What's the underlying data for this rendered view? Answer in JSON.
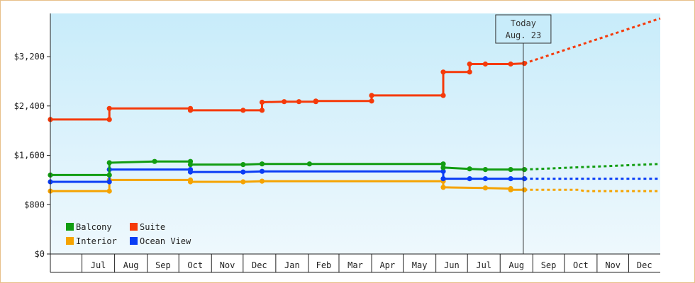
{
  "chart_data": {
    "type": "line",
    "title": "",
    "xlabel": "",
    "ylabel": "",
    "ylim": [
      0,
      3900
    ],
    "y_ticks": [
      0,
      800,
      1600,
      2400,
      3200
    ],
    "y_tick_labels": [
      "$0",
      "$800",
      "$1,600",
      "$2,400",
      "$3,200"
    ],
    "x_range": [
      "2015-06-01",
      "2016-12-31"
    ],
    "x_tick_labels": [
      {
        "label": "Jul",
        "date": "2015-07-01"
      },
      {
        "label": "Aug",
        "date": "2015-08-01"
      },
      {
        "label": "Sep",
        "date": "2015-09-01"
      },
      {
        "label": "Oct",
        "date": "2015-10-01"
      },
      {
        "label": "Nov",
        "date": "2015-11-01"
      },
      {
        "label": "Dec",
        "date": "2015-12-01"
      },
      {
        "label": "Jan",
        "date": "2016-01-01"
      },
      {
        "label": "Feb",
        "date": "2016-02-01"
      },
      {
        "label": "Mar",
        "date": "2016-03-01"
      },
      {
        "label": "Apr",
        "date": "2016-04-01"
      },
      {
        "label": "May",
        "date": "2016-05-01"
      },
      {
        "label": "Jun",
        "date": "2016-06-01"
      },
      {
        "label": "Jul",
        "date": "2016-07-01"
      },
      {
        "label": "Aug",
        "date": "2016-08-01"
      },
      {
        "label": "Sep",
        "date": "2016-09-01"
      },
      {
        "label": "Oct",
        "date": "2016-10-01"
      },
      {
        "label": "Nov",
        "date": "2016-11-01"
      },
      {
        "label": "Dec",
        "date": "2016-12-01"
      }
    ],
    "background": {
      "top": "#c8ecfa",
      "bottom": "#eef8fd"
    },
    "today": {
      "date": "2016-08-23",
      "line1": "Today",
      "line2": "Aug. 23"
    },
    "legend": {
      "placement": "bottom-left",
      "columns": 2
    },
    "grid": false,
    "series": [
      {
        "name": "Balcony",
        "color": "#129d12",
        "points": [
          [
            "2015-06-01",
            1280
          ],
          [
            "2015-07-27",
            1280
          ],
          [
            "2015-07-27",
            1480
          ],
          [
            "2015-09-08",
            1500
          ],
          [
            "2015-10-12",
            1500
          ],
          [
            "2015-10-12",
            1450
          ],
          [
            "2015-12-01",
            1450
          ],
          [
            "2015-12-19",
            1460
          ],
          [
            "2016-02-02",
            1460
          ],
          [
            "2016-06-08",
            1460
          ],
          [
            "2016-06-08",
            1400
          ],
          [
            "2016-07-03",
            1380
          ],
          [
            "2016-07-18",
            1370
          ],
          [
            "2016-08-11",
            1370
          ],
          [
            "2016-08-24",
            1370
          ]
        ],
        "forecast": [
          [
            "2016-08-24",
            1370
          ],
          [
            "2016-12-31",
            1460
          ]
        ]
      },
      {
        "name": "Suite",
        "color": "#f53a0a",
        "points": [
          [
            "2015-06-01",
            2180
          ],
          [
            "2015-07-27",
            2180
          ],
          [
            "2015-07-27",
            2360
          ],
          [
            "2015-10-12",
            2360
          ],
          [
            "2015-10-12",
            2330
          ],
          [
            "2015-12-01",
            2330
          ],
          [
            "2015-12-19",
            2330
          ],
          [
            "2015-12-19",
            2460
          ],
          [
            "2016-01-09",
            2470
          ],
          [
            "2016-01-23",
            2470
          ],
          [
            "2016-02-08",
            2470
          ],
          [
            "2016-02-08",
            2480
          ],
          [
            "2016-04-01",
            2480
          ],
          [
            "2016-04-01",
            2570
          ],
          [
            "2016-06-08",
            2570
          ],
          [
            "2016-06-08",
            2950
          ],
          [
            "2016-07-03",
            2950
          ],
          [
            "2016-07-03",
            3080
          ],
          [
            "2016-07-18",
            3080
          ],
          [
            "2016-08-11",
            3080
          ],
          [
            "2016-08-24",
            3090
          ]
        ],
        "forecast": [
          [
            "2016-08-24",
            3090
          ],
          [
            "2016-12-31",
            3820
          ]
        ]
      },
      {
        "name": "Interior",
        "color": "#f5a300",
        "points": [
          [
            "2015-06-01",
            1020
          ],
          [
            "2015-07-27",
            1020
          ],
          [
            "2015-07-27",
            1200
          ],
          [
            "2015-10-12",
            1200
          ],
          [
            "2015-10-12",
            1170
          ],
          [
            "2015-12-01",
            1170
          ],
          [
            "2015-12-19",
            1180
          ],
          [
            "2016-06-08",
            1180
          ],
          [
            "2016-06-08",
            1080
          ],
          [
            "2016-07-18",
            1070
          ],
          [
            "2016-08-11",
            1060
          ],
          [
            "2016-08-11",
            1040
          ],
          [
            "2016-08-24",
            1040
          ]
        ],
        "forecast": [
          [
            "2016-08-24",
            1040
          ],
          [
            "2016-10-15",
            1040
          ],
          [
            "2016-10-20",
            1020
          ],
          [
            "2016-12-31",
            1020
          ]
        ]
      },
      {
        "name": "Ocean View",
        "color": "#0a3df5",
        "points": [
          [
            "2015-06-01",
            1170
          ],
          [
            "2015-07-27",
            1170
          ],
          [
            "2015-07-27",
            1370
          ],
          [
            "2015-10-12",
            1370
          ],
          [
            "2015-10-12",
            1330
          ],
          [
            "2015-12-01",
            1330
          ],
          [
            "2015-12-19",
            1340
          ],
          [
            "2016-06-08",
            1340
          ],
          [
            "2016-06-08",
            1220
          ],
          [
            "2016-07-03",
            1220
          ],
          [
            "2016-07-18",
            1220
          ],
          [
            "2016-08-11",
            1220
          ],
          [
            "2016-08-24",
            1220
          ]
        ],
        "forecast": [
          [
            "2016-08-24",
            1220
          ],
          [
            "2016-12-31",
            1220
          ]
        ]
      }
    ]
  }
}
